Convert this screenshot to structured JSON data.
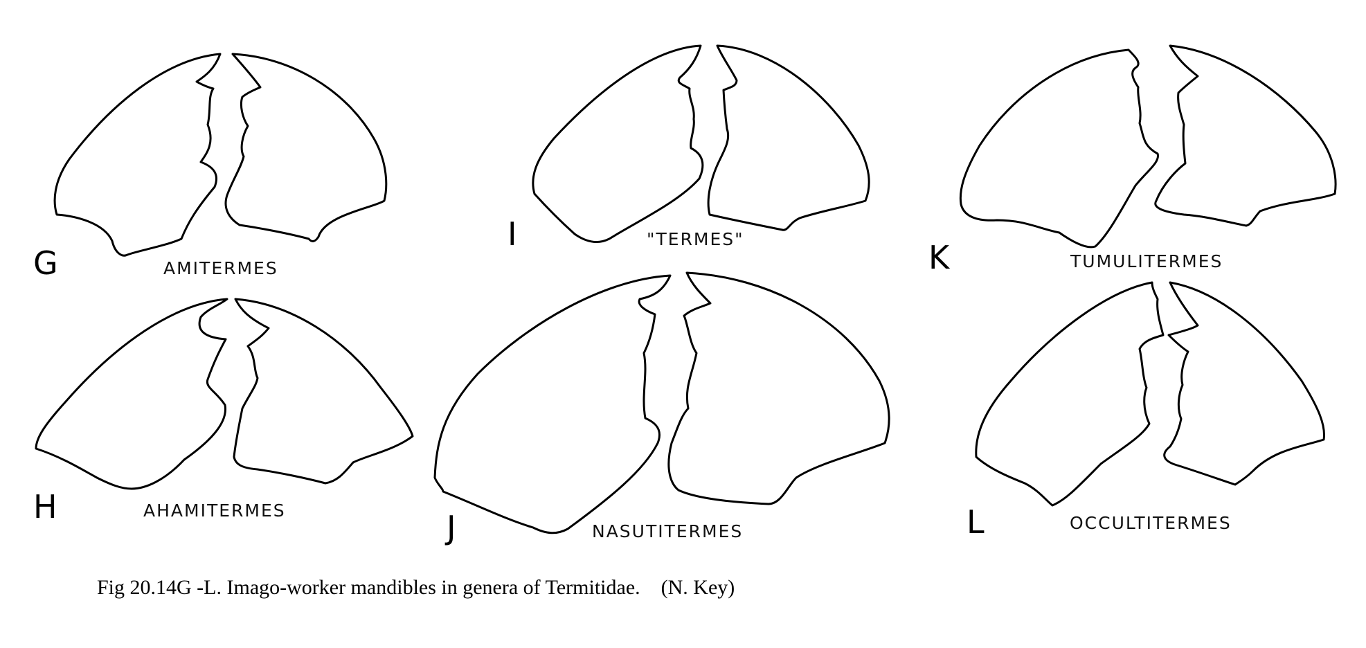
{
  "panels": [
    {
      "letter": "G",
      "genus": "AMITERMES"
    },
    {
      "letter": "H",
      "genus": "AHAMITERMES"
    },
    {
      "letter": "I",
      "genus": "\"TERMES\""
    },
    {
      "letter": "J",
      "genus": "NASUTITERMES"
    },
    {
      "letter": "K",
      "genus": "TUMULITERMES"
    },
    {
      "letter": "L",
      "genus": "OCCULTITERMES"
    }
  ],
  "caption": "Fig 20.14G -L. Imago-worker mandibles in genera of Termitidae.    (N. Key)"
}
